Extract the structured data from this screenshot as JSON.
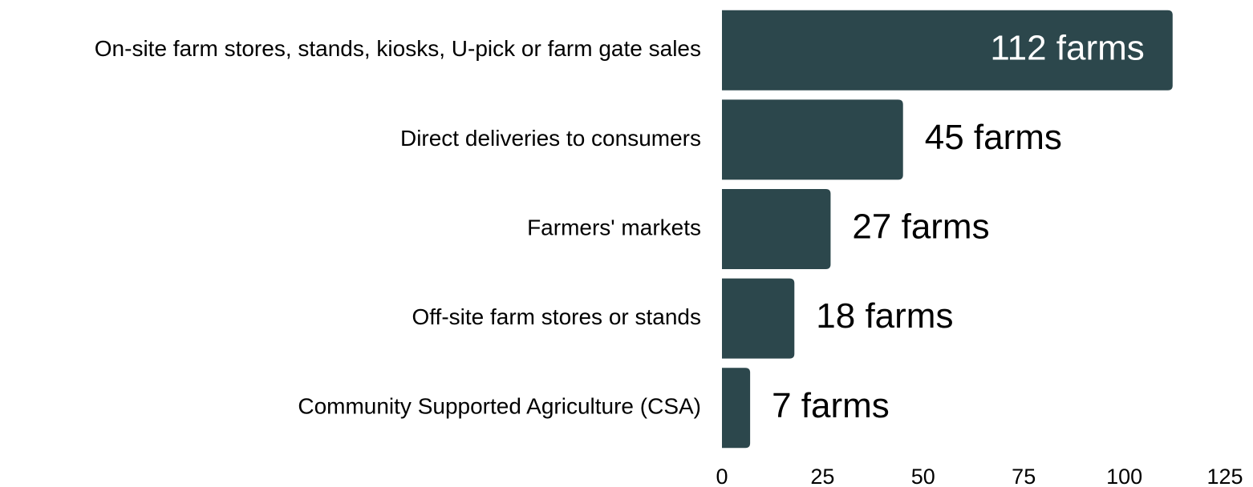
{
  "chart_data": {
    "type": "bar",
    "orientation": "horizontal",
    "categories": [
      "On-site farm stores, stands, kiosks, U-pick or farm gate sales",
      "Direct deliveries to consumers",
      "Farmers' markets",
      "Off-site farm stores or stands",
      "Community Supported Agriculture (CSA)"
    ],
    "values": [
      112,
      45,
      27,
      18,
      7
    ],
    "value_labels": [
      "112 farms",
      "45 farms",
      "27 farms",
      "18 farms",
      "7 farms"
    ],
    "color": "#2c474c",
    "xlim": [
      0,
      125
    ],
    "xticks": [
      0,
      25,
      50,
      75,
      100,
      125
    ],
    "grid": false
  }
}
